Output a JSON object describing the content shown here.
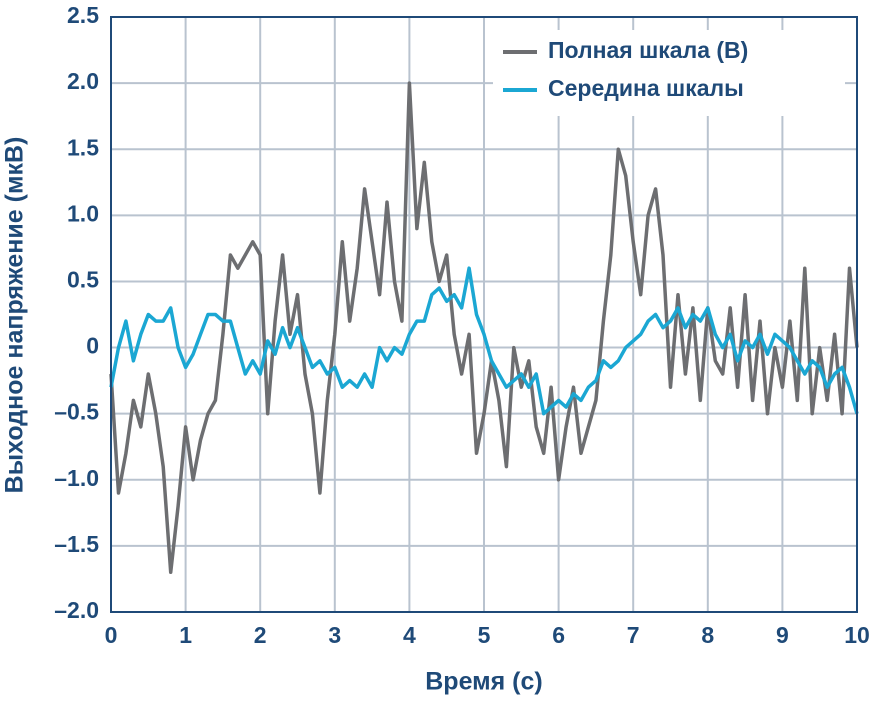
{
  "chart_data": {
    "type": "line",
    "x_label": "Время (с)",
    "y_label": "Выходное напряжение (мкВ)",
    "x": [
      0,
      0.1,
      0.2,
      0.3,
      0.4,
      0.5,
      0.6,
      0.7,
      0.8,
      0.9,
      1,
      1.1,
      1.2,
      1.3,
      1.4,
      1.5,
      1.6,
      1.7,
      1.8,
      1.9,
      2,
      2.1,
      2.2,
      2.3,
      2.4,
      2.5,
      2.6,
      2.7,
      2.8,
      2.9,
      3,
      3.1,
      3.2,
      3.3,
      3.4,
      3.5,
      3.6,
      3.7,
      3.8,
      3.9,
      4,
      4.1,
      4.2,
      4.3,
      4.4,
      4.5,
      4.6,
      4.7,
      4.8,
      4.9,
      5,
      5.1,
      5.2,
      5.3,
      5.4,
      5.5,
      5.6,
      5.7,
      5.8,
      5.9,
      6,
      6.1,
      6.2,
      6.3,
      6.4,
      6.5,
      6.6,
      6.7,
      6.8,
      6.9,
      7,
      7.1,
      7.2,
      7.3,
      7.4,
      7.5,
      7.6,
      7.7,
      7.8,
      7.9,
      8,
      8.1,
      8.2,
      8.3,
      8.4,
      8.5,
      8.6,
      8.7,
      8.8,
      8.9,
      9,
      9.1,
      9.2,
      9.3,
      9.4,
      9.5,
      9.6,
      9.7,
      9.8,
      9.9,
      10
    ],
    "series": [
      {
        "name": "Полная шкала (В)",
        "color": "#6d6e71",
        "values": [
          -0.2,
          -1.1,
          -0.8,
          -0.4,
          -0.6,
          -0.2,
          -0.5,
          -0.9,
          -1.7,
          -1.2,
          -0.6,
          -1.0,
          -0.7,
          -0.5,
          -0.4,
          0.1,
          0.7,
          0.6,
          0.7,
          0.8,
          0.7,
          -0.5,
          0.2,
          0.7,
          0.1,
          0.4,
          -0.2,
          -0.5,
          -1.1,
          -0.4,
          0.1,
          0.8,
          0.2,
          0.6,
          1.2,
          0.8,
          0.4,
          1.1,
          0.5,
          0.2,
          2.0,
          0.9,
          1.4,
          0.8,
          0.5,
          0.7,
          0.1,
          -0.2,
          0.1,
          -0.8,
          -0.5,
          -0.1,
          -0.4,
          -0.9,
          0.0,
          -0.3,
          -0.1,
          -0.6,
          -0.8,
          -0.3,
          -1.0,
          -0.6,
          -0.3,
          -0.8,
          -0.6,
          -0.4,
          0.2,
          0.7,
          1.5,
          1.3,
          0.8,
          0.4,
          1.0,
          1.2,
          0.7,
          -0.3,
          0.4,
          -0.2,
          0.3,
          -0.4,
          0.3,
          -0.1,
          -0.2,
          0.3,
          -0.3,
          0.4,
          -0.4,
          0.2,
          -0.5,
          0.0,
          -0.3,
          0.2,
          -0.4,
          0.6,
          -0.5,
          0.0,
          -0.4,
          0.1,
          -0.5,
          0.6,
          0.0
        ]
      },
      {
        "name": "Середина шкалы",
        "color": "#1ba7d3",
        "values": [
          -0.3,
          0.0,
          0.2,
          -0.1,
          0.1,
          0.25,
          0.2,
          0.2,
          0.3,
          0.0,
          -0.15,
          -0.05,
          0.1,
          0.25,
          0.25,
          0.2,
          0.2,
          0.0,
          -0.2,
          -0.1,
          -0.2,
          0.05,
          -0.05,
          0.15,
          0.0,
          0.15,
          0.0,
          -0.15,
          -0.1,
          -0.2,
          -0.15,
          -0.3,
          -0.25,
          -0.3,
          -0.2,
          -0.3,
          0.0,
          -0.1,
          0.0,
          -0.05,
          0.1,
          0.2,
          0.2,
          0.4,
          0.45,
          0.35,
          0.4,
          0.3,
          0.6,
          0.25,
          0.1,
          -0.1,
          -0.2,
          -0.3,
          -0.25,
          -0.2,
          -0.3,
          -0.2,
          -0.5,
          -0.45,
          -0.4,
          -0.45,
          -0.35,
          -0.4,
          -0.3,
          -0.25,
          -0.1,
          -0.15,
          -0.1,
          0.0,
          0.05,
          0.1,
          0.2,
          0.25,
          0.15,
          0.2,
          0.3,
          0.15,
          0.25,
          0.2,
          0.3,
          0.1,
          0.0,
          0.1,
          -0.1,
          0.05,
          0.0,
          0.1,
          -0.05,
          0.1,
          0.05,
          0.0,
          -0.1,
          -0.2,
          -0.1,
          -0.15,
          -0.3,
          -0.2,
          -0.15,
          -0.3,
          -0.5
        ]
      }
    ],
    "xlim": [
      0,
      10
    ],
    "xticks": [
      0,
      1,
      2,
      3,
      4,
      5,
      6,
      7,
      8,
      9,
      10
    ],
    "ylim": [
      -2.0,
      2.5
    ],
    "yticks": [
      {
        "value": -2.0,
        "label": "–2.0"
      },
      {
        "value": -1.5,
        "label": "–1.5"
      },
      {
        "value": -1.0,
        "label": "–1.0"
      },
      {
        "value": -0.5,
        "label": "–0.5"
      },
      0,
      0.5,
      {
        "value": 1.0,
        "label": "1.0"
      },
      1.5,
      {
        "value": 2.0,
        "label": "2.0"
      },
      2.5
    ],
    "grid": true,
    "legend": "upper right"
  }
}
